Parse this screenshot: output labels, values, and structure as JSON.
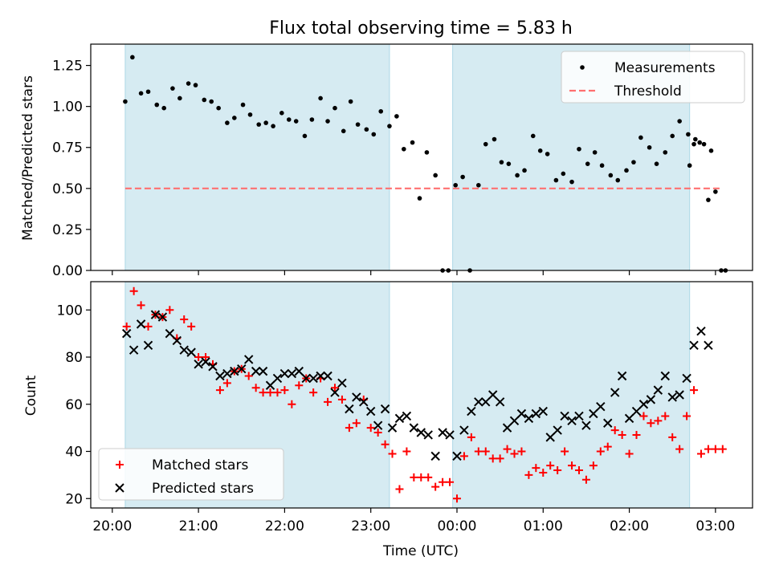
{
  "chart_data": [
    {
      "type": "scatter",
      "title": "Flux total observing time = 5.83 h",
      "xlabel": "",
      "ylabel": "Matched/Predicted stars",
      "ylim": [
        0,
        1.38
      ],
      "yticks": [
        0,
        0.25,
        0.5,
        0.75,
        1.0,
        1.25
      ],
      "ytick_labels": [
        "0.00",
        "0.25",
        "0.50",
        "0.75",
        "1.00",
        "1.25"
      ],
      "x_axis": "time (UTC), expressed as hours after 20:00",
      "shaded_intervals": [
        [
          "20:09",
          "23:13"
        ],
        [
          "23:57",
          "02:42"
        ]
      ],
      "threshold": {
        "name": "Threshold",
        "value": 0.5,
        "color": "#ff7070",
        "style": "dashed",
        "x_range": [
          "20:09",
          "03:04"
        ]
      },
      "legend": {
        "position": "top-right",
        "entries": [
          "Measurements",
          "Threshold"
        ]
      },
      "series": [
        {
          "name": "Measurements",
          "marker": "dot",
          "color": "#000000",
          "points": [
            [
              "20:09",
              1.03
            ],
            [
              "20:14",
              1.3
            ],
            [
              "20:20",
              1.08
            ],
            [
              "20:25",
              1.09
            ],
            [
              "20:31",
              1.01
            ],
            [
              "20:36",
              0.99
            ],
            [
              "20:42",
              1.11
            ],
            [
              "20:47",
              1.05
            ],
            [
              "20:53",
              1.14
            ],
            [
              "20:58",
              1.13
            ],
            [
              "21:04",
              1.04
            ],
            [
              "21:09",
              1.03
            ],
            [
              "21:14",
              0.99
            ],
            [
              "21:20",
              0.9
            ],
            [
              "21:25",
              0.93
            ],
            [
              "21:31",
              1.01
            ],
            [
              "21:36",
              0.95
            ],
            [
              "21:42",
              0.89
            ],
            [
              "21:47",
              0.9
            ],
            [
              "21:52",
              0.88
            ],
            [
              "21:58",
              0.96
            ],
            [
              "22:03",
              0.92
            ],
            [
              "22:08",
              0.91
            ],
            [
              "22:14",
              0.82
            ],
            [
              "22:19",
              0.92
            ],
            [
              "22:25",
              1.05
            ],
            [
              "22:30",
              0.91
            ],
            [
              "22:35",
              0.99
            ],
            [
              "22:41",
              0.85
            ],
            [
              "22:46",
              1.03
            ],
            [
              "22:51",
              0.89
            ],
            [
              "22:57",
              0.86
            ],
            [
              "23:02",
              0.83
            ],
            [
              "23:07",
              0.97
            ],
            [
              "23:13",
              0.88
            ],
            [
              "23:18",
              0.94
            ],
            [
              "23:23",
              0.74
            ],
            [
              "23:29",
              0.78
            ],
            [
              "23:34",
              0.44
            ],
            [
              "23:39",
              0.72
            ],
            [
              "23:45",
              0.58
            ],
            [
              "23:50",
              0.0
            ],
            [
              "23:54",
              0.0
            ],
            [
              "23:59",
              0.52
            ],
            [
              "00:04",
              0.57
            ],
            [
              "00:09",
              0.0
            ],
            [
              "00:15",
              0.52
            ],
            [
              "00:20",
              0.77
            ],
            [
              "00:26",
              0.8
            ],
            [
              "00:31",
              0.66
            ],
            [
              "00:36",
              0.65
            ],
            [
              "00:42",
              0.58
            ],
            [
              "00:47",
              0.61
            ],
            [
              "00:53",
              0.82
            ],
            [
              "00:58",
              0.73
            ],
            [
              "01:03",
              0.71
            ],
            [
              "01:09",
              0.55
            ],
            [
              "01:14",
              0.59
            ],
            [
              "01:20",
              0.54
            ],
            [
              "01:25",
              0.74
            ],
            [
              "01:31",
              0.65
            ],
            [
              "01:36",
              0.72
            ],
            [
              "01:41",
              0.64
            ],
            [
              "01:47",
              0.58
            ],
            [
              "01:52",
              0.55
            ],
            [
              "01:58",
              0.61
            ],
            [
              "02:03",
              0.66
            ],
            [
              "02:08",
              0.81
            ],
            [
              "02:14",
              0.75
            ],
            [
              "02:19",
              0.65
            ],
            [
              "02:25",
              0.72
            ],
            [
              "02:30",
              0.82
            ],
            [
              "02:35",
              0.91
            ],
            [
              "02:41",
              0.83
            ],
            [
              "02:46",
              0.8
            ],
            [
              "02:52",
              0.77
            ],
            [
              "02:57",
              0.73
            ],
            [
              "02:42",
              0.64
            ],
            [
              "02:45",
              0.77
            ],
            [
              "02:49",
              0.78
            ],
            [
              "02:55",
              0.43
            ],
            [
              "03:00",
              0.48
            ],
            [
              "03:04",
              0.0
            ],
            [
              "03:07",
              0.0
            ]
          ]
        }
      ]
    },
    {
      "type": "scatter",
      "title": "",
      "xlabel": "Time (UTC)",
      "ylabel": "Count",
      "ylim": [
        16,
        112
      ],
      "yticks": [
        20,
        40,
        60,
        80,
        100
      ],
      "xticks": [
        "20:00",
        "21:00",
        "22:00",
        "23:00",
        "00:00",
        "01:00",
        "02:00",
        "03:00"
      ],
      "shaded_intervals": [
        [
          "20:09",
          "23:13"
        ],
        [
          "23:57",
          "02:42"
        ]
      ],
      "legend": {
        "position": "bottom-left",
        "entries": [
          "Matched stars",
          "Predicted stars"
        ]
      },
      "series": [
        {
          "name": "Matched stars",
          "marker": "plus",
          "color": "#ff0000",
          "points": [
            [
              "20:10",
              93
            ],
            [
              "20:15",
              108
            ],
            [
              "20:20",
              102
            ],
            [
              "20:25",
              93
            ],
            [
              "20:30",
              98
            ],
            [
              "20:35",
              97
            ],
            [
              "20:40",
              100
            ],
            [
              "20:45",
              88
            ],
            [
              "20:50",
              96
            ],
            [
              "20:55",
              93
            ],
            [
              "21:00",
              80
            ],
            [
              "21:05",
              80
            ],
            [
              "21:10",
              77
            ],
            [
              "21:15",
              66
            ],
            [
              "21:20",
              69
            ],
            [
              "21:25",
              74
            ],
            [
              "21:30",
              75
            ],
            [
              "21:35",
              72
            ],
            [
              "21:40",
              67
            ],
            [
              "21:45",
              65
            ],
            [
              "21:50",
              65
            ],
            [
              "21:55",
              65
            ],
            [
              "22:00",
              66
            ],
            [
              "22:05",
              60
            ],
            [
              "22:10",
              68
            ],
            [
              "22:15",
              71
            ],
            [
              "22:20",
              65
            ],
            [
              "22:25",
              71
            ],
            [
              "22:30",
              61
            ],
            [
              "22:35",
              67
            ],
            [
              "22:40",
              62
            ],
            [
              "22:45",
              50
            ],
            [
              "22:50",
              52
            ],
            [
              "22:55",
              62
            ],
            [
              "23:00",
              50
            ],
            [
              "23:05",
              48
            ],
            [
              "23:10",
              43
            ],
            [
              "23:15",
              39
            ],
            [
              "23:20",
              24
            ],
            [
              "23:25",
              40
            ],
            [
              "23:30",
              29
            ],
            [
              "23:35",
              29
            ],
            [
              "23:40",
              29
            ],
            [
              "23:45",
              25
            ],
            [
              "23:50",
              27
            ],
            [
              "23:55",
              27
            ],
            [
              "00:00",
              20
            ],
            [
              "00:05",
              38
            ],
            [
              "00:10",
              46
            ],
            [
              "00:15",
              40
            ],
            [
              "00:20",
              40
            ],
            [
              "00:25",
              37
            ],
            [
              "00:30",
              37
            ],
            [
              "00:35",
              41
            ],
            [
              "00:40",
              39
            ],
            [
              "00:45",
              40
            ],
            [
              "00:50",
              30
            ],
            [
              "00:55",
              33
            ],
            [
              "01:00",
              31
            ],
            [
              "01:05",
              34
            ],
            [
              "01:10",
              32
            ],
            [
              "01:15",
              40
            ],
            [
              "01:20",
              34
            ],
            [
              "01:25",
              32
            ],
            [
              "01:30",
              28
            ],
            [
              "01:35",
              34
            ],
            [
              "01:40",
              40
            ],
            [
              "01:45",
              42
            ],
            [
              "01:50",
              49
            ],
            [
              "01:55",
              47
            ],
            [
              "02:00",
              39
            ],
            [
              "02:05",
              47
            ],
            [
              "02:10",
              55
            ],
            [
              "02:15",
              52
            ],
            [
              "02:20",
              53
            ],
            [
              "02:25",
              55
            ],
            [
              "02:30",
              46
            ],
            [
              "02:35",
              41
            ],
            [
              "02:40",
              55
            ],
            [
              "02:45",
              66
            ],
            [
              "02:50",
              39
            ],
            [
              "02:55",
              41
            ],
            [
              "03:00",
              41
            ],
            [
              "03:05",
              41
            ]
          ]
        },
        {
          "name": "Predicted stars",
          "marker": "x",
          "color": "#000000",
          "points": [
            [
              "20:10",
              90
            ],
            [
              "20:15",
              83
            ],
            [
              "20:20",
              94
            ],
            [
              "20:25",
              85
            ],
            [
              "20:30",
              98
            ],
            [
              "20:35",
              97
            ],
            [
              "20:40",
              90
            ],
            [
              "20:45",
              87
            ],
            [
              "20:50",
              83
            ],
            [
              "20:55",
              82
            ],
            [
              "21:00",
              77
            ],
            [
              "21:05",
              78
            ],
            [
              "21:10",
              76
            ],
            [
              "21:15",
              72
            ],
            [
              "21:20",
              73
            ],
            [
              "21:25",
              74
            ],
            [
              "21:30",
              75
            ],
            [
              "21:35",
              79
            ],
            [
              "21:40",
              74
            ],
            [
              "21:45",
              74
            ],
            [
              "21:50",
              68
            ],
            [
              "21:55",
              71
            ],
            [
              "22:00",
              73
            ],
            [
              "22:05",
              73
            ],
            [
              "22:10",
              74
            ],
            [
              "22:15",
              71
            ],
            [
              "22:20",
              71
            ],
            [
              "22:25",
              72
            ],
            [
              "22:30",
              72
            ],
            [
              "22:35",
              65
            ],
            [
              "22:40",
              69
            ],
            [
              "22:45",
              58
            ],
            [
              "22:50",
              63
            ],
            [
              "22:55",
              61
            ],
            [
              "23:00",
              57
            ],
            [
              "23:05",
              51
            ],
            [
              "23:10",
              58
            ],
            [
              "23:15",
              50
            ],
            [
              "23:20",
              54
            ],
            [
              "23:25",
              55
            ],
            [
              "23:30",
              50
            ],
            [
              "23:35",
              48
            ],
            [
              "23:40",
              47
            ],
            [
              "23:45",
              38
            ],
            [
              "23:50",
              48
            ],
            [
              "23:55",
              47
            ],
            [
              "00:00",
              38
            ],
            [
              "00:05",
              49
            ],
            [
              "00:10",
              57
            ],
            [
              "00:15",
              61
            ],
            [
              "00:20",
              61
            ],
            [
              "00:25",
              64
            ],
            [
              "00:30",
              61
            ],
            [
              "00:35",
              50
            ],
            [
              "00:40",
              53
            ],
            [
              "00:45",
              56
            ],
            [
              "00:50",
              54
            ],
            [
              "00:55",
              56
            ],
            [
              "01:00",
              57
            ],
            [
              "01:05",
              46
            ],
            [
              "01:10",
              49
            ],
            [
              "01:15",
              55
            ],
            [
              "01:20",
              53
            ],
            [
              "01:25",
              55
            ],
            [
              "01:30",
              51
            ],
            [
              "01:35",
              56
            ],
            [
              "01:40",
              59
            ],
            [
              "01:45",
              52
            ],
            [
              "01:50",
              65
            ],
            [
              "01:55",
              72
            ],
            [
              "02:00",
              54
            ],
            [
              "02:05",
              57
            ],
            [
              "02:10",
              60
            ],
            [
              "02:15",
              62
            ],
            [
              "02:20",
              66
            ],
            [
              "02:25",
              72
            ],
            [
              "02:30",
              63
            ],
            [
              "02:35",
              64
            ],
            [
              "02:40",
              71
            ],
            [
              "02:45",
              85
            ],
            [
              "02:50",
              91
            ],
            [
              "02:55",
              85
            ]
          ]
        }
      ]
    }
  ]
}
